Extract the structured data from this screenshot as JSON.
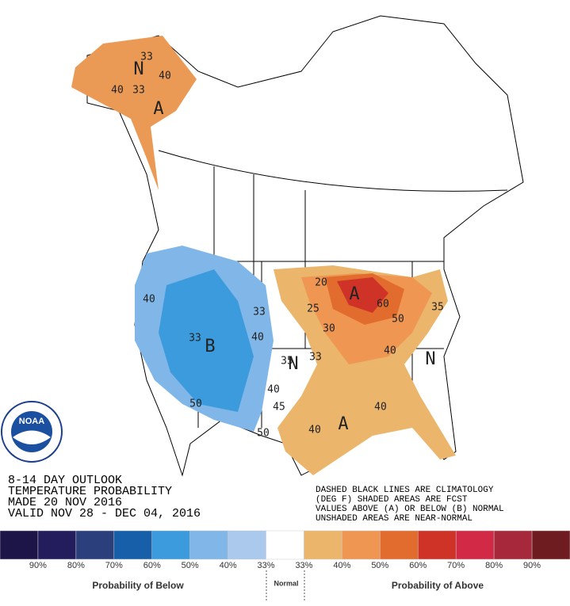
{
  "map": {
    "labels": [
      "N",
      "A",
      "40",
      "33",
      "40",
      "33",
      "B",
      "40",
      "33",
      "40",
      "33",
      "50",
      "A",
      "20",
      "25",
      "30",
      "40",
      "50",
      "60",
      "35",
      "33",
      "N",
      "35",
      "40",
      "45",
      "50",
      "N",
      "A",
      "40",
      "40"
    ]
  },
  "outlook": {
    "lines": [
      "8-14 DAY OUTLOOK",
      "TEMPERATURE PROBABILITY",
      "MADE  20 NOV 2016",
      "VALID  NOV 28 - DEC 04, 2016"
    ]
  },
  "notes": {
    "lines": [
      "DASHED BLACK LINES ARE CLIMATOLOGY",
      "(DEG F) SHADED AREAS ARE FCST",
      "VALUES ABOVE (A) OR BELOW (B) NORMAL",
      "UNSHADED AREAS ARE NEAR-NORMAL"
    ]
  },
  "logo": "NOAA",
  "legend": {
    "colors": [
      "#1d1448",
      "#231d5e",
      "#2b3f7c",
      "#1760a9",
      "#3c9bdc",
      "#80b7e8",
      "#aac9ec",
      "#ffffff",
      "#ebb66c",
      "#ee9652",
      "#e26c2e",
      "#cf3328",
      "#d22a46",
      "#a6283a",
      "#6e1c1f"
    ],
    "labels": [
      "90%",
      "80%",
      "70%",
      "60%",
      "50%",
      "40%",
      "33%",
      "33%",
      "40%",
      "50%",
      "60%",
      "70%",
      "80%",
      "90%"
    ],
    "below": "Probability of Below",
    "normal": "Normal",
    "above": "Probability of Above"
  }
}
